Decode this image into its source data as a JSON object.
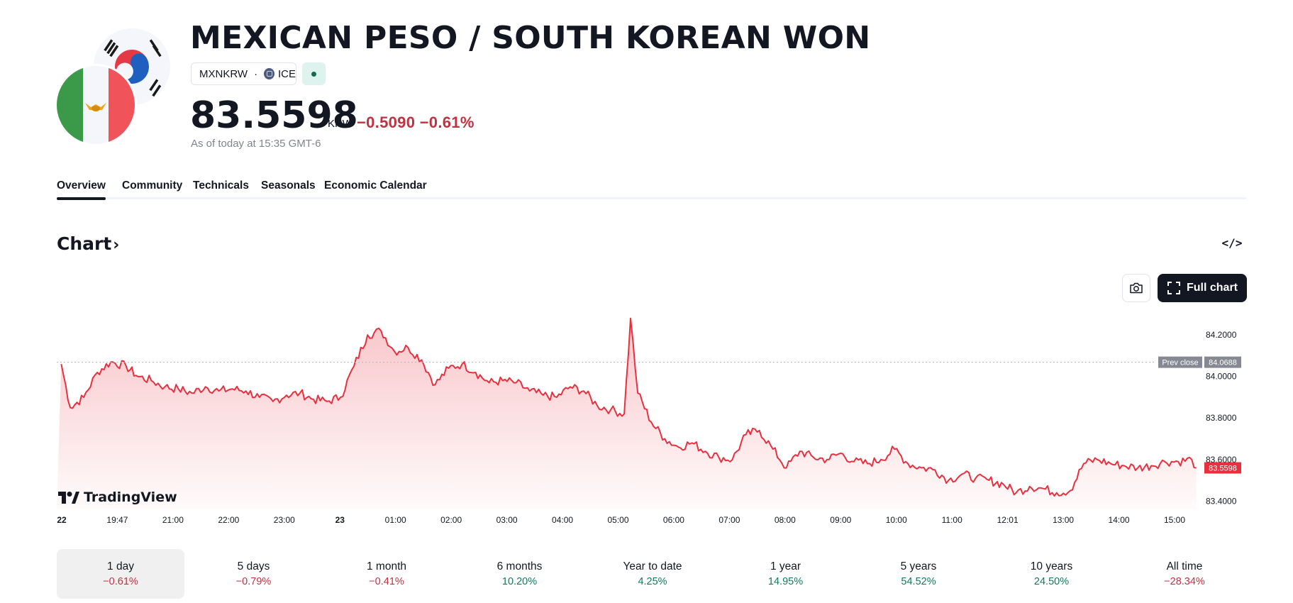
{
  "header": {
    "title": "MEXICAN PESO / SOUTH KOREAN WON",
    "symbol": "MXNKRW",
    "exchange": "ICE",
    "price": "83.5598",
    "currency": "KRW",
    "change": "−0.5090 −0.61%",
    "as_of": "As of today at 15:35 GMT-6"
  },
  "tabs": [
    "Overview",
    "Community",
    "Technicals",
    "Seasonals",
    "Economic Calendar"
  ],
  "chart_section": {
    "heading": "Chart",
    "full_chart_label": "Full chart",
    "brand": "TradingView"
  },
  "colors": {
    "line": "#e8303f",
    "negative": "#c0323f",
    "positive": "#0f7a5f",
    "prev_close_tag": "#868993",
    "last_price_tag": "#e8303f"
  },
  "chart_data": {
    "type": "area",
    "x_tick_labels": [
      "22",
      "19:47",
      "21:00",
      "22:00",
      "23:00",
      "23",
      "01:00",
      "02:00",
      "03:00",
      "04:00",
      "05:00",
      "06:00",
      "07:00",
      "08:00",
      "09:00",
      "10:00",
      "11:00",
      "12:01",
      "13:00",
      "14:00",
      "15:00"
    ],
    "y_tick_labels": [
      "84.2000",
      "84.0000",
      "83.8000",
      "83.6000",
      "83.4000"
    ],
    "ylim": [
      83.36,
      84.31
    ],
    "prev_close": {
      "label": "Prev close",
      "value": 84.0688,
      "text": "84.0688"
    },
    "last_price": {
      "value": 83.5598,
      "text": "83.5598"
    },
    "series": [
      {
        "x": [
          "18:35",
          "18:45",
          "19:00",
          "19:15",
          "19:30",
          "19:47",
          "20:00",
          "20:15",
          "20:30",
          "20:45",
          "21:00",
          "21:15",
          "21:30",
          "21:45",
          "22:00",
          "22:15",
          "22:30",
          "22:45",
          "23:00",
          "23:15",
          "23:30",
          "23:45",
          "00:00",
          "00:15",
          "00:30",
          "00:45",
          "01:00",
          "01:15",
          "01:30",
          "01:45",
          "02:00",
          "02:15",
          "02:30",
          "02:45",
          "03:00",
          "03:15",
          "03:30",
          "03:45",
          "04:00",
          "04:15",
          "04:30",
          "04:45",
          "05:00",
          "05:07",
          "05:15",
          "05:30",
          "05:45",
          "06:00",
          "06:15",
          "06:30",
          "06:45",
          "07:00",
          "07:15",
          "07:30",
          "07:45",
          "08:00",
          "08:15",
          "08:30",
          "08:45",
          "09:00",
          "09:15",
          "09:30",
          "09:45",
          "10:00",
          "10:15",
          "10:30",
          "10:45",
          "11:00",
          "11:15",
          "11:30",
          "11:45",
          "12:01",
          "12:15",
          "12:30",
          "12:45",
          "13:00",
          "13:15",
          "13:30",
          "13:45",
          "14:00",
          "14:15",
          "14:30",
          "14:45",
          "15:00",
          "15:15",
          "15:30",
          "15:35"
        ],
        "values": [
          84.06,
          83.85,
          83.9,
          84.02,
          84.07,
          84.05,
          84.0,
          83.98,
          83.95,
          83.94,
          83.92,
          83.95,
          83.93,
          83.94,
          83.93,
          83.9,
          83.88,
          83.91,
          83.92,
          83.89,
          83.88,
          83.9,
          84.05,
          84.2,
          84.22,
          84.12,
          84.14,
          84.08,
          83.96,
          84.04,
          84.06,
          84.02,
          83.97,
          83.98,
          83.97,
          83.93,
          83.91,
          83.9,
          83.95,
          83.93,
          83.86,
          83.84,
          83.82,
          84.28,
          83.92,
          83.78,
          83.7,
          83.66,
          83.68,
          83.64,
          83.61,
          83.6,
          83.72,
          83.74,
          83.65,
          83.56,
          83.64,
          83.61,
          83.6,
          83.63,
          83.59,
          83.58,
          83.6,
          83.65,
          83.58,
          83.56,
          83.55,
          83.5,
          83.53,
          83.51,
          83.5,
          83.48,
          83.44,
          83.47,
          83.46,
          83.44,
          83.45,
          83.58,
          83.6,
          83.58,
          83.57,
          83.56,
          83.57,
          83.59,
          83.59,
          83.6,
          83.5598
        ]
      }
    ]
  },
  "periods": [
    {
      "label": "1 day",
      "value": "−0.61%",
      "dir": "neg"
    },
    {
      "label": "5 days",
      "value": "−0.79%",
      "dir": "neg"
    },
    {
      "label": "1 month",
      "value": "−0.41%",
      "dir": "neg"
    },
    {
      "label": "6 months",
      "value": "10.20%",
      "dir": "pos"
    },
    {
      "label": "Year to date",
      "value": "4.25%",
      "dir": "pos"
    },
    {
      "label": "1 year",
      "value": "14.95%",
      "dir": "pos"
    },
    {
      "label": "5 years",
      "value": "54.52%",
      "dir": "pos"
    },
    {
      "label": "10 years",
      "value": "24.50%",
      "dir": "pos"
    },
    {
      "label": "All time",
      "value": "−28.34%",
      "dir": "neg"
    }
  ]
}
